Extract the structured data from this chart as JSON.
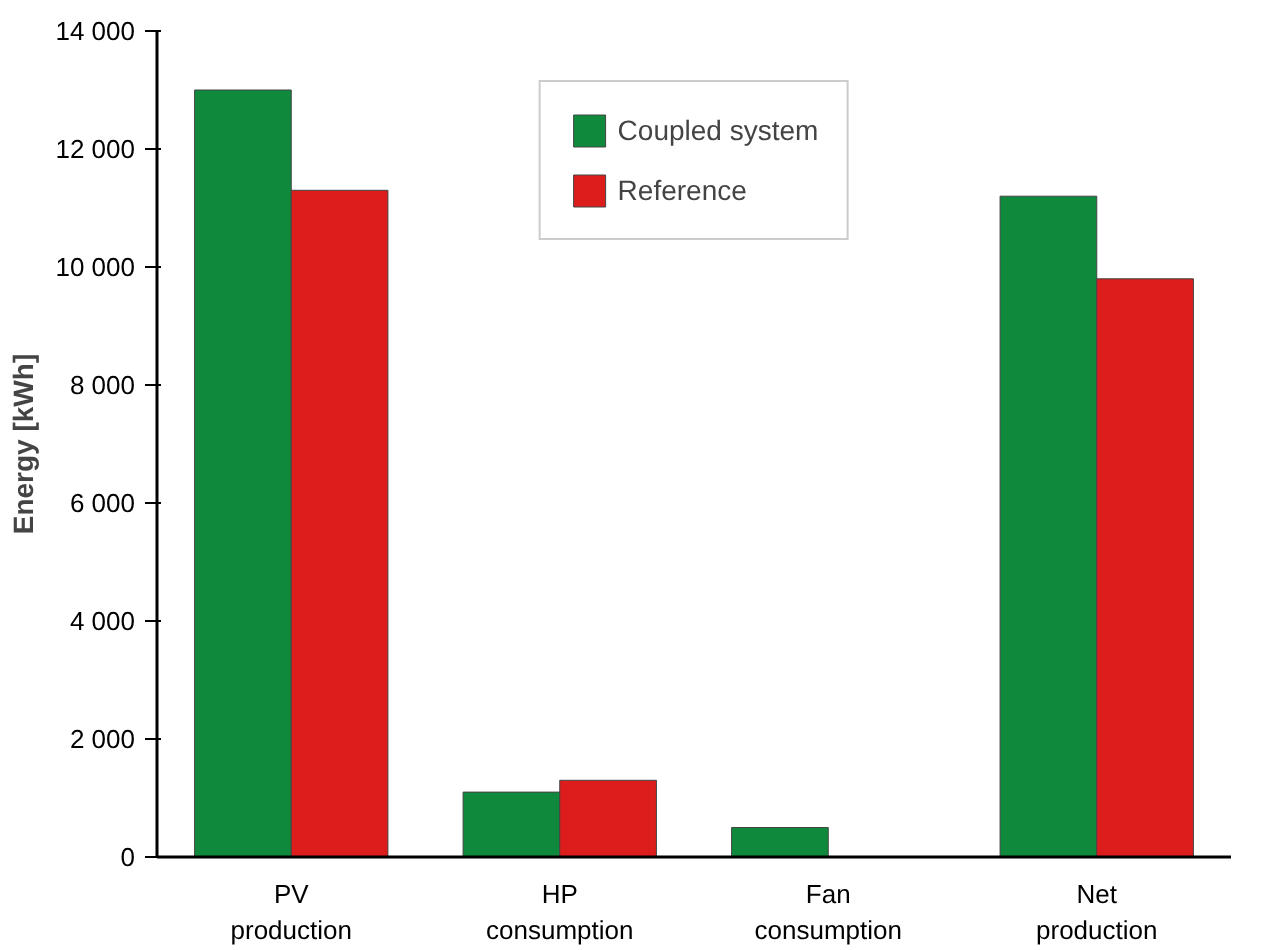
{
  "chart_data": {
    "type": "bar",
    "ylabel": "Energy [kWh]",
    "categories": [
      "PV\nproduction",
      "HP\nconsumption",
      "Fan\nconsumption",
      "Net\nproduction"
    ],
    "series": [
      {
        "name": "Coupled system",
        "color": "#0f8a3c",
        "values": [
          13000,
          1100,
          500,
          11200
        ]
      },
      {
        "name": "Reference",
        "color": "#dd1c1c",
        "values": [
          11300,
          1300,
          null,
          9800
        ]
      }
    ],
    "ylim": [
      0,
      14000
    ],
    "yticks": [
      0,
      {
        "value": 2000,
        "label": "2 000"
      },
      {
        "value": 4000,
        "label": "4 000"
      },
      {
        "value": 6000,
        "label": "6 000"
      },
      {
        "value": 8000,
        "label": "8 000"
      },
      {
        "value": 10000,
        "label": "10 000"
      },
      {
        "value": 12000,
        "label": "12 000"
      },
      {
        "value": 14000,
        "label": "14 000"
      }
    ],
    "grid": false,
    "legend": "top"
  }
}
